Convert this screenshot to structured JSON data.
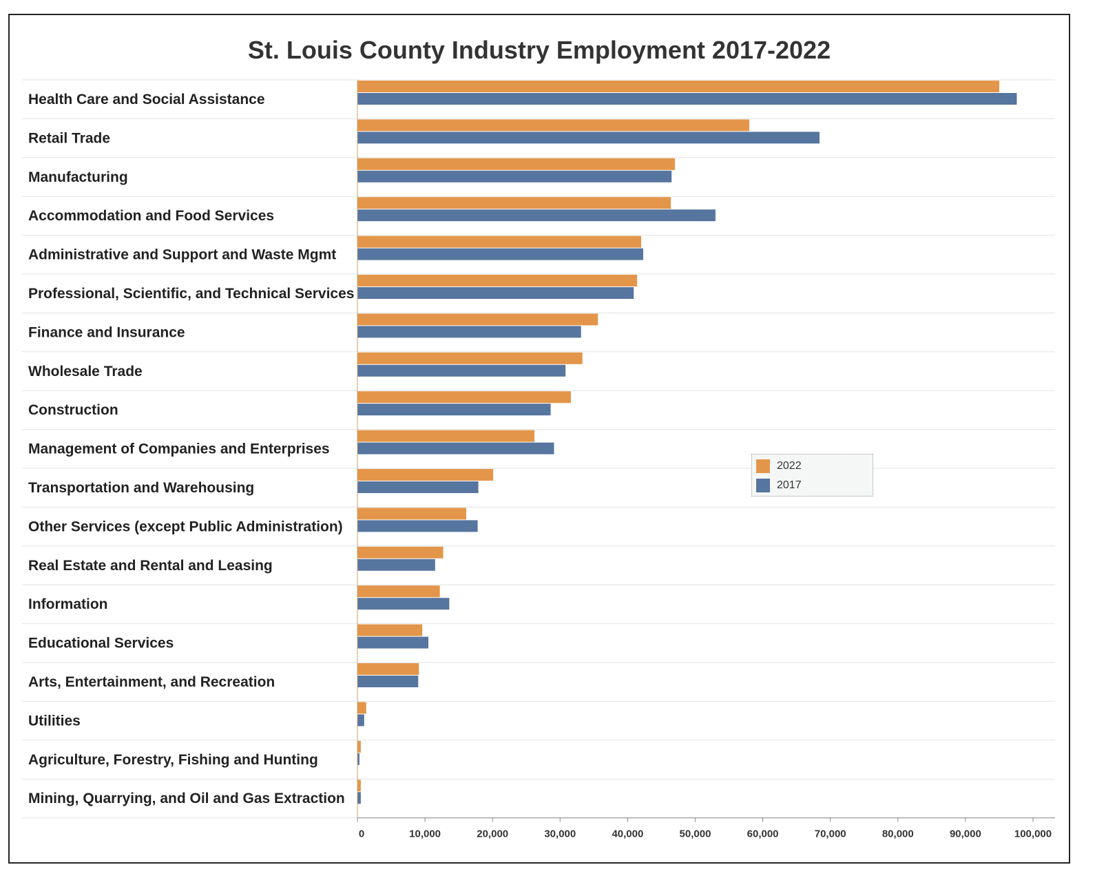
{
  "chart_data": {
    "type": "bar",
    "orientation": "horizontal",
    "title": "St. Louis County Industry Employment 2017-2022",
    "xlabel": "",
    "ylabel": "",
    "xlim": [
      0,
      100000
    ],
    "x_ticks": [
      "0",
      "10,000",
      "20,000",
      "30,000",
      "40,000",
      "50,000",
      "60,000",
      "70,000",
      "80,000",
      "90,000",
      "100,000"
    ],
    "grid": "horizontal separators between categories",
    "legend_position": "center-right",
    "categories": [
      "Health Care and Social Assistance",
      "Retail Trade",
      "Manufacturing",
      "Accommodation and Food Services",
      "Administrative and Support and Waste Mgmt",
      "Professional, Scientific, and Technical Services",
      "Finance and Insurance",
      "Wholesale Trade",
      "Construction",
      "Management of Companies and Enterprises",
      "Transportation and Warehousing",
      "Other Services (except Public Administration)",
      "Real Estate and Rental and Leasing",
      "Information",
      "Educational Services",
      "Arts, Entertainment, and Recreation",
      "Utilities",
      "Agriculture, Forestry, Fishing and Hunting",
      "Mining, Quarrying, and Oil and Gas Extraction"
    ],
    "series": [
      {
        "name": "2022",
        "color": "#E3964A",
        "values": [
          95000,
          58000,
          47000,
          46400,
          42000,
          41400,
          35600,
          33300,
          31600,
          26200,
          20100,
          16100,
          12700,
          12200,
          9600,
          9100,
          1300,
          500,
          500
        ]
      },
      {
        "name": "2017",
        "color": "#56759F",
        "values": [
          97600,
          68400,
          46500,
          53000,
          42300,
          40900,
          33100,
          30800,
          28600,
          29100,
          17900,
          17800,
          11500,
          13600,
          10500,
          9000,
          1000,
          300,
          500
        ]
      }
    ]
  },
  "legend": {
    "items": [
      {
        "label": "2022",
        "color": "#E3964A"
      },
      {
        "label": "2017",
        "color": "#56759F"
      }
    ]
  }
}
